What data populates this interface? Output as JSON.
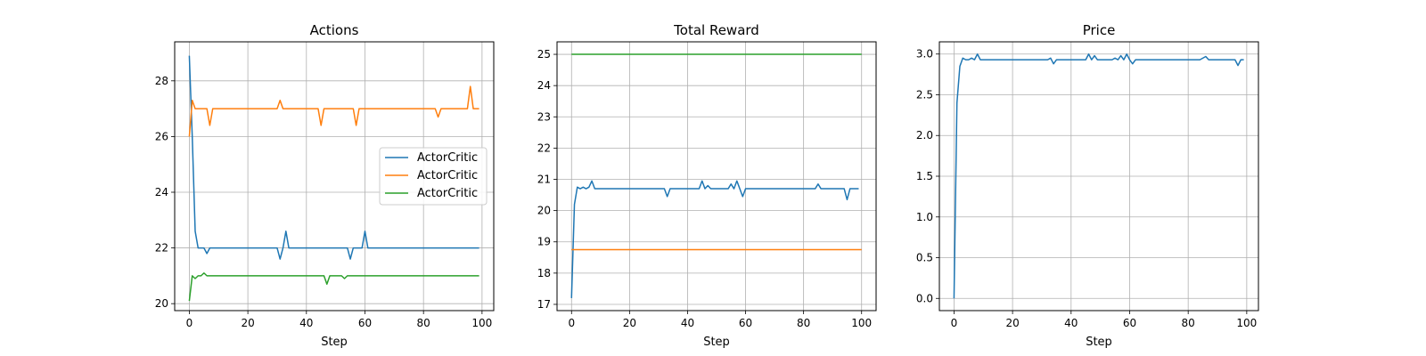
{
  "chart_data": [
    {
      "type": "line",
      "title": "Actions",
      "xlabel": "Step",
      "ylabel": "",
      "xlim": [
        -5,
        104
      ],
      "ylim": [
        19.75,
        29.4
      ],
      "xticks": [
        0,
        20,
        40,
        60,
        80,
        100
      ],
      "yticks": [
        20,
        22,
        24,
        26,
        28
      ],
      "grid": true,
      "legend": {
        "position": "center-right",
        "entries": [
          "ActorCritic",
          "ActorCritic",
          "ActorCritic"
        ]
      },
      "series": [
        {
          "name": "ActorCritic",
          "color": "#1f77b4",
          "x": [
            0,
            1,
            2,
            3,
            4,
            5,
            6,
            7,
            8,
            9,
            10,
            12,
            14,
            16,
            18,
            20,
            22,
            24,
            26,
            28,
            30,
            31,
            32,
            33,
            34,
            36,
            38,
            40,
            42,
            44,
            46,
            48,
            50,
            52,
            54,
            55,
            56,
            58,
            59,
            60,
            61,
            62,
            64,
            66,
            68,
            70,
            72,
            74,
            76,
            78,
            80,
            82,
            84,
            86,
            88,
            90,
            92,
            94,
            96,
            98,
            99
          ],
          "y": [
            28.9,
            26.0,
            22.6,
            22.0,
            22.0,
            22.0,
            21.8,
            22.0,
            22.0,
            22.0,
            22.0,
            22.0,
            22.0,
            22.0,
            22.0,
            22.0,
            22.0,
            22.0,
            22.0,
            22.0,
            22.0,
            21.6,
            22.0,
            22.6,
            22.0,
            22.0,
            22.0,
            22.0,
            22.0,
            22.0,
            22.0,
            22.0,
            22.0,
            22.0,
            22.0,
            21.6,
            22.0,
            22.0,
            22.0,
            22.6,
            22.0,
            22.0,
            22.0,
            22.0,
            22.0,
            22.0,
            22.0,
            22.0,
            22.0,
            22.0,
            22.0,
            22.0,
            22.0,
            22.0,
            22.0,
            22.0,
            22.0,
            22.0,
            22.0,
            22.0,
            22.0
          ]
        },
        {
          "name": "ActorCritic",
          "color": "#ff7f0e",
          "x": [
            0,
            1,
            2,
            3,
            4,
            5,
            6,
            7,
            8,
            9,
            10,
            12,
            14,
            16,
            18,
            20,
            22,
            24,
            26,
            28,
            30,
            31,
            32,
            33,
            34,
            36,
            38,
            40,
            42,
            44,
            45,
            46,
            48,
            50,
            52,
            54,
            56,
            57,
            58,
            60,
            62,
            64,
            66,
            68,
            70,
            72,
            74,
            76,
            78,
            80,
            82,
            84,
            85,
            86,
            88,
            90,
            92,
            94,
            95,
            96,
            97,
            98,
            99
          ],
          "y": [
            26.0,
            27.3,
            27.0,
            27.0,
            27.0,
            27.0,
            27.0,
            26.4,
            27.0,
            27.0,
            27.0,
            27.0,
            27.0,
            27.0,
            27.0,
            27.0,
            27.0,
            27.0,
            27.0,
            27.0,
            27.0,
            27.3,
            27.0,
            27.0,
            27.0,
            27.0,
            27.0,
            27.0,
            27.0,
            27.0,
            26.4,
            27.0,
            27.0,
            27.0,
            27.0,
            27.0,
            27.0,
            26.4,
            27.0,
            27.0,
            27.0,
            27.0,
            27.0,
            27.0,
            27.0,
            27.0,
            27.0,
            27.0,
            27.0,
            27.0,
            27.0,
            27.0,
            26.7,
            27.0,
            27.0,
            27.0,
            27.0,
            27.0,
            27.0,
            27.8,
            27.0,
            27.0,
            27.0
          ]
        },
        {
          "name": "ActorCritic",
          "color": "#2ca02c",
          "x": [
            0,
            1,
            2,
            3,
            4,
            5,
            6,
            7,
            8,
            10,
            12,
            14,
            16,
            18,
            20,
            22,
            24,
            26,
            28,
            30,
            32,
            34,
            36,
            38,
            40,
            42,
            44,
            46,
            47,
            48,
            50,
            52,
            53,
            54,
            56,
            58,
            60,
            62,
            64,
            66,
            68,
            70,
            72,
            74,
            76,
            78,
            80,
            82,
            84,
            86,
            88,
            90,
            92,
            94,
            96,
            98,
            99
          ],
          "y": [
            20.1,
            21.0,
            20.9,
            21.0,
            21.0,
            21.1,
            21.0,
            21.0,
            21.0,
            21.0,
            21.0,
            21.0,
            21.0,
            21.0,
            21.0,
            21.0,
            21.0,
            21.0,
            21.0,
            21.0,
            21.0,
            21.0,
            21.0,
            21.0,
            21.0,
            21.0,
            21.0,
            21.0,
            20.7,
            21.0,
            21.0,
            21.0,
            20.9,
            21.0,
            21.0,
            21.0,
            21.0,
            21.0,
            21.0,
            21.0,
            21.0,
            21.0,
            21.0,
            21.0,
            21.0,
            21.0,
            21.0,
            21.0,
            21.0,
            21.0,
            21.0,
            21.0,
            21.0,
            21.0,
            21.0,
            21.0,
            21.0
          ]
        }
      ]
    },
    {
      "type": "line",
      "title": "Total Reward",
      "xlabel": "Step",
      "ylabel": "",
      "xlim": [
        -5,
        105
      ],
      "ylim": [
        16.8,
        25.4
      ],
      "xticks": [
        0,
        20,
        40,
        60,
        80,
        100
      ],
      "yticks": [
        17,
        18,
        19,
        20,
        21,
        22,
        23,
        24,
        25
      ],
      "grid": true,
      "series": [
        {
          "color": "#1f77b4",
          "x": [
            0,
            1,
            2,
            3,
            4,
            5,
            6,
            7,
            8,
            10,
            12,
            14,
            16,
            18,
            20,
            22,
            24,
            26,
            28,
            30,
            31,
            32,
            33,
            34,
            36,
            38,
            40,
            42,
            44,
            45,
            46,
            47,
            48,
            50,
            52,
            54,
            55,
            56,
            57,
            58,
            59,
            60,
            61,
            62,
            64,
            66,
            68,
            70,
            72,
            74,
            76,
            78,
            80,
            82,
            84,
            85,
            86,
            88,
            90,
            92,
            94,
            95,
            96,
            97,
            98,
            99
          ],
          "y": [
            17.2,
            20.2,
            20.75,
            20.7,
            20.75,
            20.7,
            20.75,
            20.95,
            20.7,
            20.7,
            20.7,
            20.7,
            20.7,
            20.7,
            20.7,
            20.7,
            20.7,
            20.7,
            20.7,
            20.7,
            20.7,
            20.7,
            20.45,
            20.7,
            20.7,
            20.7,
            20.7,
            20.7,
            20.7,
            20.95,
            20.7,
            20.8,
            20.7,
            20.7,
            20.7,
            20.7,
            20.85,
            20.7,
            20.95,
            20.7,
            20.45,
            20.7,
            20.7,
            20.7,
            20.7,
            20.7,
            20.7,
            20.7,
            20.7,
            20.7,
            20.7,
            20.7,
            20.7,
            20.7,
            20.7,
            20.85,
            20.7,
            20.7,
            20.7,
            20.7,
            20.7,
            20.35,
            20.7,
            20.7,
            20.7,
            20.7
          ]
        },
        {
          "color": "#ff7f0e",
          "x": [
            0,
            100
          ],
          "y": [
            18.75,
            18.75
          ]
        },
        {
          "color": "#2ca02c",
          "x": [
            0,
            100
          ],
          "y": [
            25.0,
            25.0
          ]
        }
      ]
    },
    {
      "type": "line",
      "title": "Price",
      "xlabel": "Step",
      "ylabel": "",
      "xlim": [
        -5,
        104
      ],
      "ylim": [
        -0.15,
        3.15
      ],
      "xticks": [
        0,
        20,
        40,
        60,
        80,
        100
      ],
      "yticks": [
        0.0,
        0.5,
        1.0,
        1.5,
        2.0,
        2.5,
        3.0
      ],
      "ytick_labels": [
        "0.0",
        "0.5",
        "1.0",
        "1.5",
        "2.0",
        "2.5",
        "3.0"
      ],
      "grid": true,
      "series": [
        {
          "color": "#1f77b4",
          "x": [
            0,
            1,
            2,
            3,
            4,
            5,
            6,
            7,
            8,
            9,
            10,
            12,
            14,
            16,
            18,
            20,
            22,
            24,
            26,
            28,
            30,
            32,
            33,
            34,
            35,
            36,
            38,
            40,
            42,
            44,
            45,
            46,
            47,
            48,
            49,
            50,
            52,
            54,
            55,
            56,
            57,
            58,
            59,
            60,
            61,
            62,
            64,
            66,
            68,
            70,
            72,
            74,
            76,
            78,
            80,
            82,
            84,
            86,
            87,
            88,
            90,
            92,
            94,
            96,
            97,
            98,
            99
          ],
          "y": [
            0.0,
            2.4,
            2.85,
            2.95,
            2.93,
            2.93,
            2.95,
            2.93,
            3.0,
            2.93,
            2.93,
            2.93,
            2.93,
            2.93,
            2.93,
            2.93,
            2.93,
            2.93,
            2.93,
            2.93,
            2.93,
            2.93,
            2.95,
            2.88,
            2.93,
            2.93,
            2.93,
            2.93,
            2.93,
            2.93,
            2.93,
            3.0,
            2.93,
            2.98,
            2.93,
            2.93,
            2.93,
            2.93,
            2.95,
            2.93,
            2.98,
            2.93,
            3.0,
            2.93,
            2.88,
            2.93,
            2.93,
            2.93,
            2.93,
            2.93,
            2.93,
            2.93,
            2.93,
            2.93,
            2.93,
            2.93,
            2.93,
            2.97,
            2.93,
            2.93,
            2.93,
            2.93,
            2.93,
            2.93,
            2.86,
            2.93,
            2.93
          ]
        }
      ]
    }
  ]
}
